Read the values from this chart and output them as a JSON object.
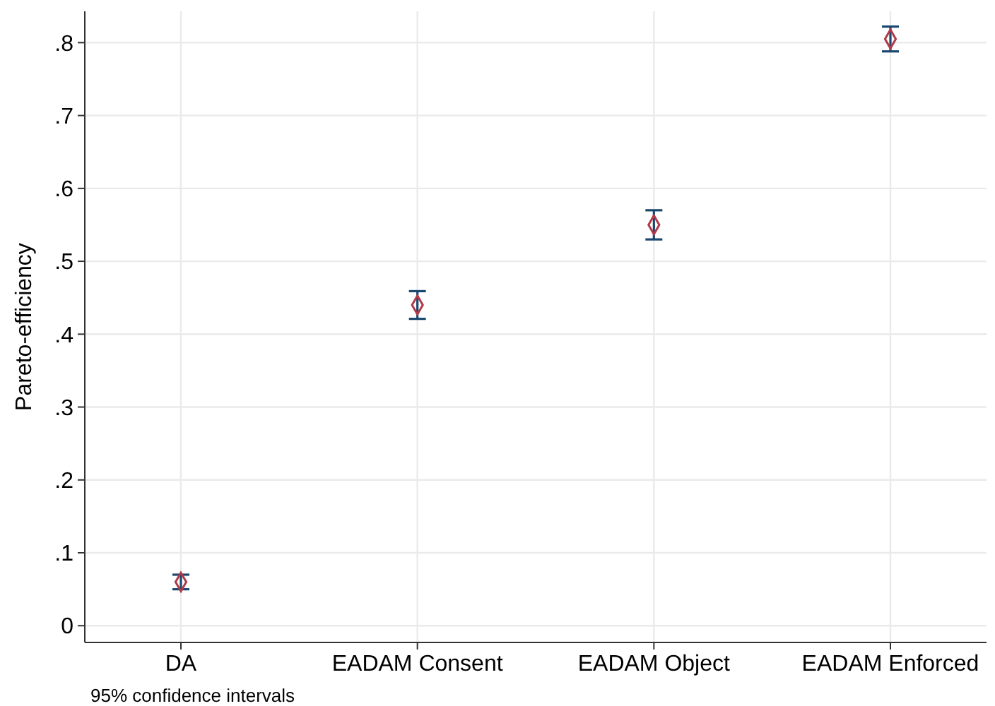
{
  "chart_data": {
    "type": "scatter",
    "ylabel": "Pareto-efficiency",
    "categories": [
      "DA",
      "EADAM Consent",
      "EADAM Object",
      "EADAM Enforced"
    ],
    "series": [
      {
        "color": "#b03a48",
        "values": [
          0.06,
          0.44,
          0.55,
          0.805
        ],
        "errors": [
          0.01,
          0.019,
          0.02,
          0.017
        ]
      }
    ],
    "ylim": [
      -0.023,
      0.843
    ],
    "yticks": [
      0,
      {
        "value": 0.1,
        "label": ".1"
      },
      {
        "value": 0.2,
        "label": ".2"
      },
      {
        "value": 0.3,
        "label": ".3"
      },
      {
        "value": 0.4,
        "label": ".4"
      },
      {
        "value": 0.5,
        "label": ".5"
      },
      {
        "value": 0.6,
        "label": ".6"
      },
      {
        "value": 0.7,
        "label": ".7"
      },
      {
        "value": 0.8,
        "label": ".8"
      }
    ],
    "grid": true,
    "marker": "diamond",
    "annotations": [
      "95% confidence intervals"
    ]
  }
}
